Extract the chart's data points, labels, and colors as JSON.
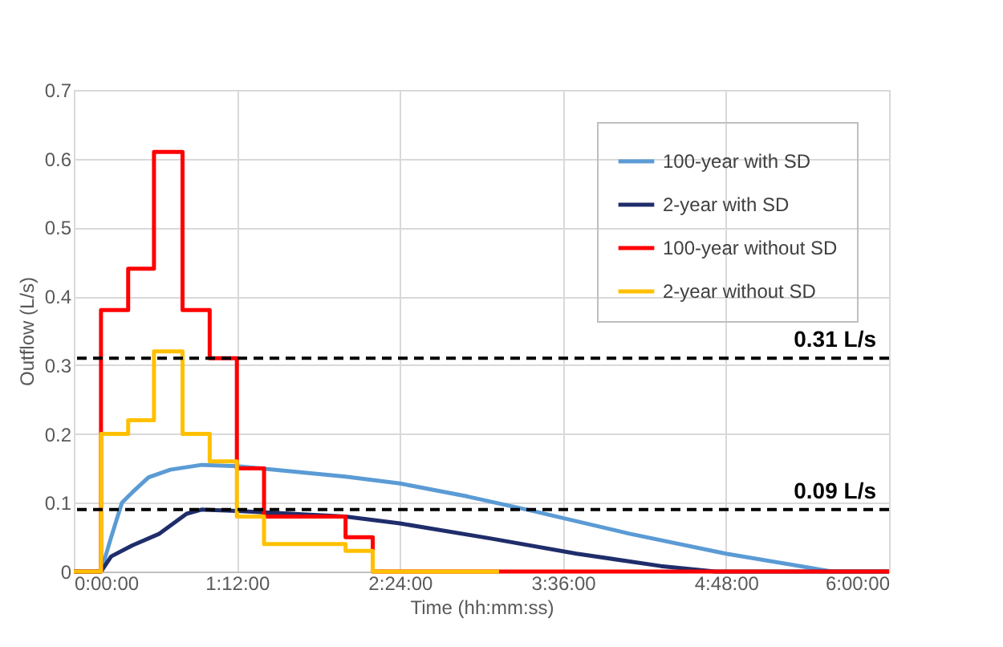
{
  "chart_data": {
    "type": "line",
    "xlabel": "Time (hh:mm:ss)",
    "ylabel": "Outflow (L/s)",
    "xlim": [
      0,
      6
    ],
    "xticks": [
      {
        "value": 0,
        "label": "0:00:00"
      },
      {
        "value": 1.2,
        "label": "1:12:00"
      },
      {
        "value": 2.4,
        "label": "2:24:00"
      },
      {
        "value": 3.6,
        "label": "3:36:00"
      },
      {
        "value": 4.8,
        "label": "4:48:00"
      },
      {
        "value": 6,
        "label": "6:00:00"
      }
    ],
    "ylim": [
      0,
      0.7
    ],
    "yticks": [
      0,
      0.1,
      0.2,
      0.3,
      0.4,
      0.5,
      0.6,
      0.7
    ],
    "grid": true,
    "legend": "top right",
    "line_style": "solid",
    "marker": "none",
    "series": [
      {
        "name": "100-year with SD",
        "color": "#5b9bd5",
        "x": [
          0,
          0.2,
          0.275,
          0.354,
          0.43,
          0.55,
          0.71,
          0.94,
          1.2,
          1.42,
          2.0,
          2.4,
          2.9,
          3.38,
          4.09,
          4.8,
          5.58,
          6
        ],
        "values": [
          0,
          0,
          0.05,
          0.1,
          0.115,
          0.137,
          0.148,
          0.155,
          0.153,
          0.149,
          0.138,
          0.128,
          0.109,
          0.088,
          0.055,
          0.026,
          0,
          0
        ]
      },
      {
        "name": "2-year with SD",
        "color": "#1f2d6b",
        "x": [
          0,
          0.2,
          0.275,
          0.43,
          0.63,
          0.83,
          0.94,
          1.2,
          2.0,
          2.4,
          3.07,
          3.7,
          4.32,
          4.72,
          6
        ],
        "values": [
          0,
          0,
          0.022,
          0.038,
          0.055,
          0.084,
          0.09,
          0.088,
          0.08,
          0.07,
          0.048,
          0.026,
          0.008,
          0,
          0
        ]
      },
      {
        "name": "100-year without SD",
        "color": "#ff0000",
        "x": [
          0,
          0.2,
          0.2,
          0.4,
          0.4,
          0.59,
          0.59,
          0.8,
          0.8,
          1.0,
          1.0,
          1.2,
          1.2,
          1.4,
          1.4,
          2.0,
          2.0,
          2.2,
          2.2,
          6
        ],
        "values": [
          0,
          0,
          0.38,
          0.38,
          0.44,
          0.44,
          0.61,
          0.61,
          0.38,
          0.38,
          0.31,
          0.31,
          0.15,
          0.15,
          0.08,
          0.08,
          0.05,
          0.05,
          0,
          0
        ]
      },
      {
        "name": "2-year without SD",
        "color": "#ffc000",
        "x": [
          0,
          0.2,
          0.2,
          0.4,
          0.4,
          0.59,
          0.59,
          0.8,
          0.8,
          1.0,
          1.0,
          1.2,
          1.2,
          1.4,
          1.4,
          2.0,
          2.0,
          2.2,
          2.2,
          3.13
        ],
        "values": [
          0,
          0,
          0.2,
          0.2,
          0.22,
          0.22,
          0.32,
          0.32,
          0.2,
          0.2,
          0.16,
          0.16,
          0.08,
          0.08,
          0.04,
          0.04,
          0.03,
          0.03,
          0,
          0
        ]
      }
    ],
    "ref_lines": [
      {
        "axis": "y",
        "value": 0.31,
        "label": "0.31 L/s",
        "color": "#000000",
        "line_style": "dashed"
      },
      {
        "axis": "y",
        "value": 0.09,
        "label": "0.09 L/s",
        "color": "#000000",
        "line_style": "dashed"
      }
    ]
  }
}
